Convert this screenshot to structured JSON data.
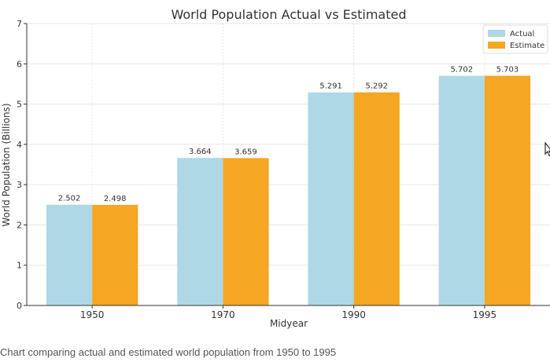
{
  "caption": "Chart comparing actual and estimated world population from 1950 to 1995",
  "chart_data": {
    "type": "bar",
    "title": "World Population Actual vs Estimated",
    "xlabel": "Midyear",
    "ylabel": "World Population (Billions)",
    "categories": [
      "1950",
      "1970",
      "1990",
      "1995"
    ],
    "series": [
      {
        "name": "Actual",
        "values": [
          2.502,
          3.664,
          5.291,
          5.702
        ],
        "labels": [
          "2.502",
          "3.664",
          "5.291",
          "5.702"
        ],
        "color": "#add8e6"
      },
      {
        "name": "Estimate",
        "values": [
          2.498,
          3.659,
          5.292,
          5.703
        ],
        "labels": [
          "2.498",
          "3.659",
          "5.292",
          "5.703"
        ],
        "color": "#f5a623"
      }
    ],
    "ylim": [
      0,
      7
    ],
    "yticks": [
      "0",
      "1",
      "2",
      "3",
      "4",
      "5",
      "6",
      "7"
    ],
    "grid": true,
    "legend_position": "top-right"
  }
}
